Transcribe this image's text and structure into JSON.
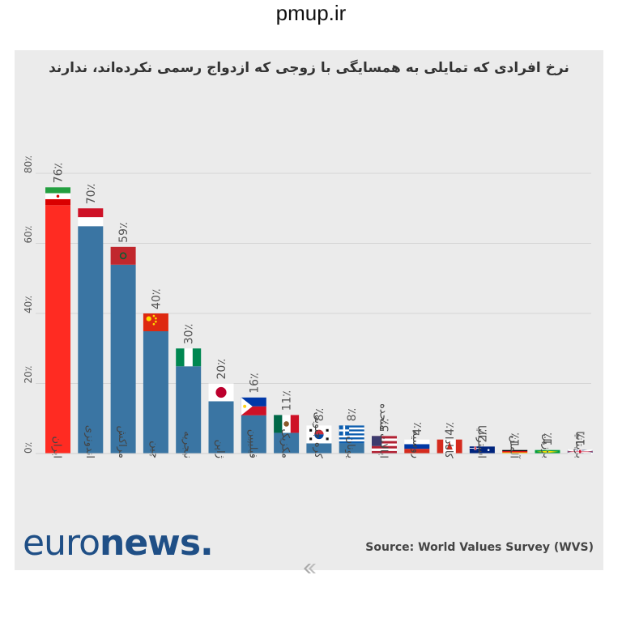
{
  "site": {
    "watermark": "pmup.ir"
  },
  "source": "Source: World Values Survey (WVS)",
  "logo": {
    "light": "euro",
    "bold": "news",
    "dot": "."
  },
  "colors": {
    "bar_default": "#3a75a3",
    "bar_highlight": "#ff2b22",
    "panel_bg": "#ebebeb",
    "logo": "#1f4f86"
  },
  "chart_data": {
    "type": "bar",
    "orientation": "vertical",
    "title": "نرخ افرادی که تمایلی به همسایگی با زوجی که ازدواج رسمی نکرده‌اند، ندارند",
    "xlabel": "",
    "ylabel": "",
    "ylim": [
      0,
      80
    ],
    "yticks": [
      "0٪",
      "20٪",
      "40٪",
      "60٪",
      "80٪"
    ],
    "grid": true,
    "legend": "none",
    "categories": [
      "ایران",
      "اندونزی",
      "مراکش",
      "چین",
      "نیجریه",
      "ژاپن",
      "فیلیپین",
      "مکزیک",
      "کره جنوبی",
      "یونان",
      "ایالات متحده",
      "روسیه",
      "کانادا",
      "استرالیا",
      "آلمان",
      "برزیل",
      "بریتانیا"
    ],
    "values": [
      76,
      70,
      59,
      40,
      30,
      20,
      16,
      11,
      8,
      8,
      5,
      4,
      4,
      2,
      1,
      1,
      1
    ],
    "value_labels": [
      "76٪",
      "70٪",
      "59٪",
      "40٪",
      "30٪",
      "20٪",
      "16٪",
      "11٪",
      "8٪",
      "8٪",
      "5٪",
      "4٪",
      "4٪",
      "2٪",
      "1٪",
      "1٪",
      "1٪"
    ],
    "flags": [
      "iran-flag",
      "indonesia-flag",
      "morocco-flag",
      "china-flag",
      "nigeria-flag",
      "japan-flag",
      "philippines-flag",
      "mexico-flag",
      "south-korea-flag",
      "greece-flag",
      "usa-flag",
      "russia-flag",
      "canada-flag",
      "australia-flag",
      "germany-flag",
      "brazil-flag",
      "uk-flag"
    ],
    "highlight_index": 0
  }
}
